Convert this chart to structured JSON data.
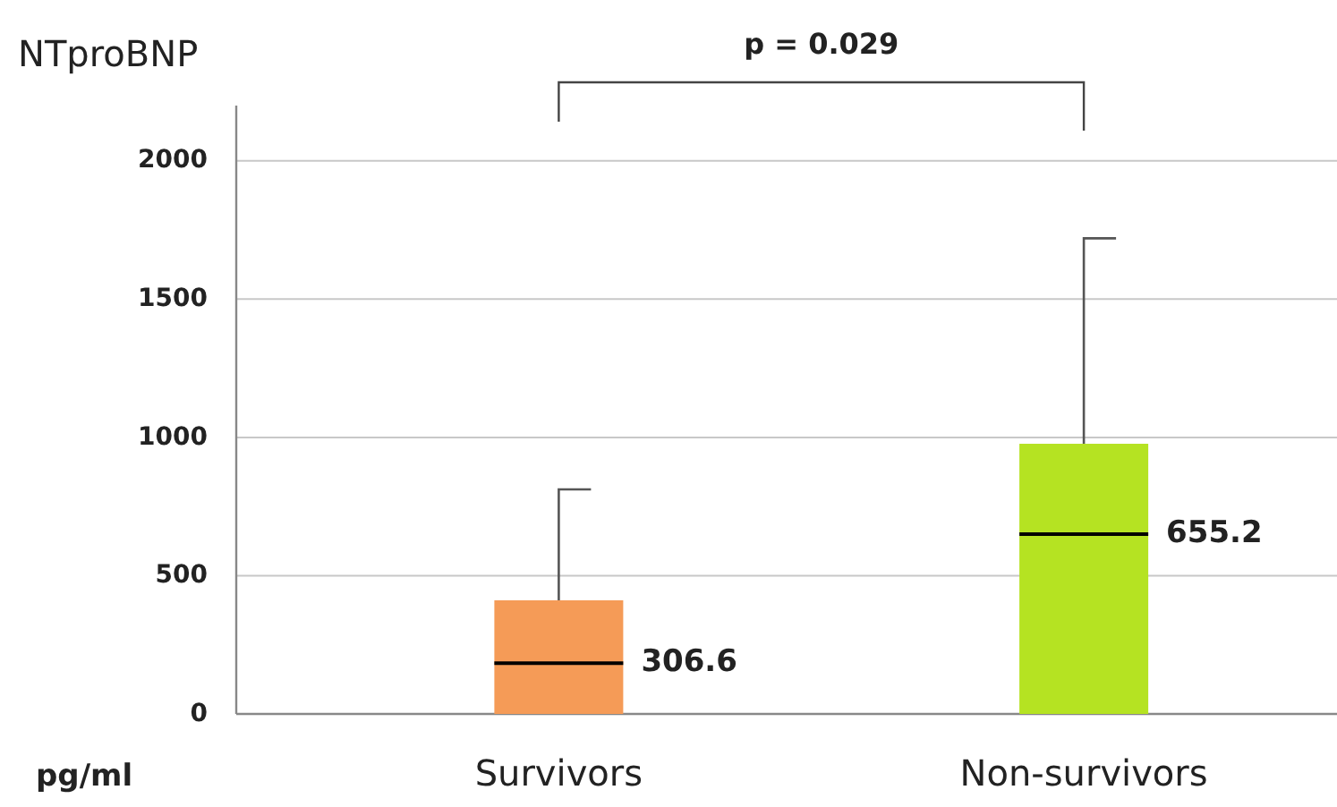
{
  "chart_data": {
    "type": "box",
    "ylabel": "NTproBNP",
    "categories": [
      "Survivors",
      "Non-survivors"
    ],
    "boxes": [
      {
        "low": 0,
        "q1": 0,
        "median": 184,
        "q3": 411,
        "high": 812
      },
      {
        "low": 0,
        "q1": 0,
        "median": 650,
        "q3": 977,
        "high": 1720
      }
    ],
    "colors": [
      "#f59b57",
      "#b5e322"
    ],
    "ylim": [
      0,
      2200
    ],
    "yticks": [
      0,
      500,
      1000,
      1500,
      2000
    ],
    "grid": "y",
    "legend": false,
    "annotations": [
      "p = 0.029",
      "pg/ml",
      {
        "text": "306.6",
        "x": "Survivors",
        "y": 184
      },
      {
        "text": "655.2",
        "x": "Non-survivors",
        "y": 650
      }
    ]
  }
}
